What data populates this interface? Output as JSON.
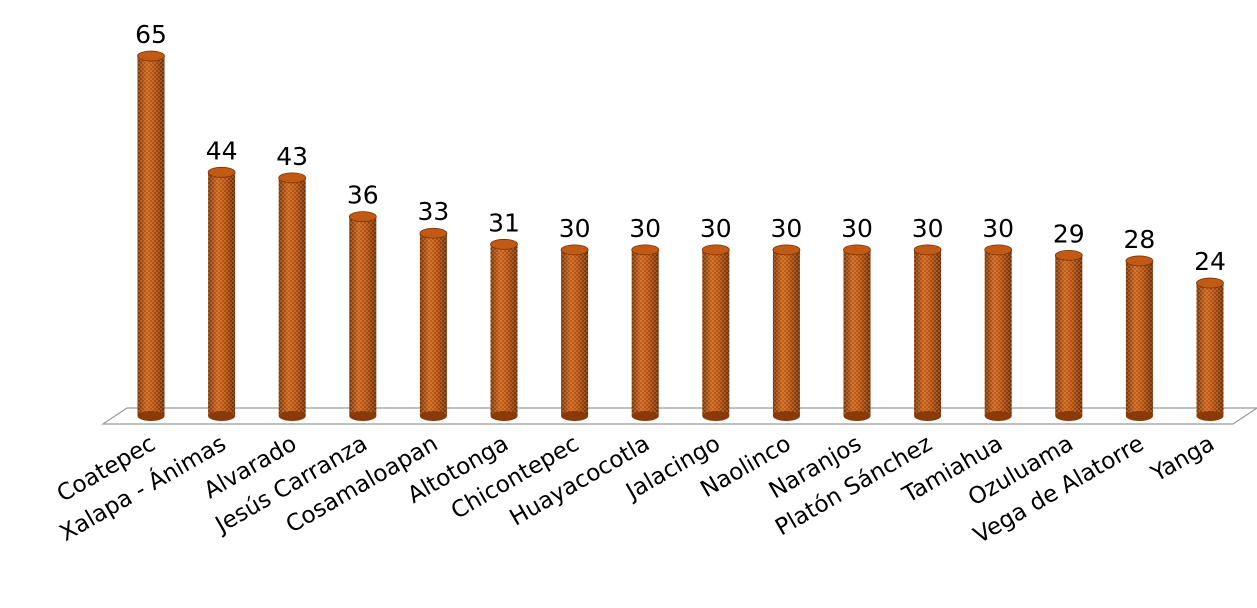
{
  "chart_data": {
    "type": "bar",
    "title": "",
    "xlabel": "",
    "ylabel": "",
    "ylim": [
      0,
      65
    ],
    "grid": false,
    "legend": "none",
    "bar_color": "#b5500f",
    "categories": [
      "Coatepec",
      "Xalapa - Ánimas",
      "Alvarado",
      "Jesús Carranza",
      "Cosamaloapan",
      "Altotonga",
      "Chicontepec",
      "Huayacocotla",
      "Jalacingo",
      "Naolinco",
      "Naranjos",
      "Platón Sánchez",
      "Tamiahua",
      "Ozuluama",
      "Vega de Alatorre",
      "Yanga"
    ],
    "values": [
      65,
      44,
      43,
      36,
      33,
      31,
      30,
      30,
      30,
      30,
      30,
      30,
      30,
      29,
      28,
      24
    ]
  }
}
